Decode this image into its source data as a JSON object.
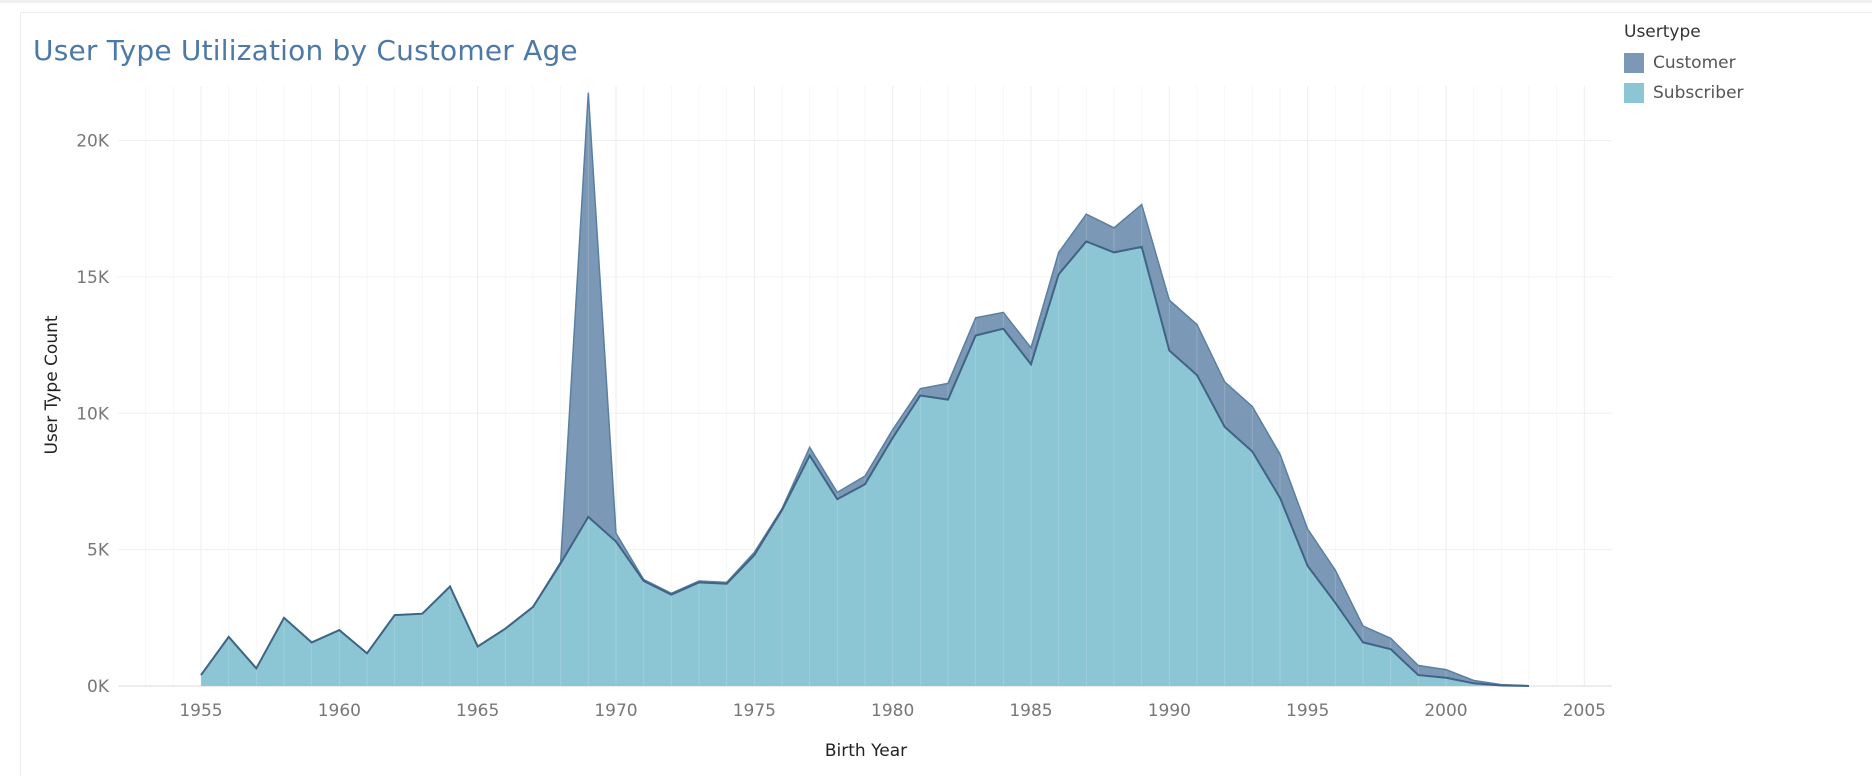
{
  "chart_data": {
    "type": "area",
    "stacked": true,
    "title": "User Type Utilization by Customer Age",
    "xlabel": "Birth Year",
    "ylabel": "User Type Count",
    "xlim": [
      1952,
      2006
    ],
    "ylim": [
      0,
      22000
    ],
    "x_ticks": [
      1955,
      1960,
      1965,
      1970,
      1975,
      1980,
      1985,
      1990,
      1995,
      2000,
      2005
    ],
    "x_tick_labels": [
      "1955",
      "1960",
      "1965",
      "1970",
      "1975",
      "1980",
      "1985",
      "1990",
      "1995",
      "2000",
      "2005"
    ],
    "y_ticks": [
      0,
      5000,
      10000,
      15000,
      20000
    ],
    "y_tick_labels": [
      "0K",
      "5K",
      "10K",
      "15K",
      "20K"
    ],
    "grid": true,
    "legend_title": "Usertype",
    "legend_position": "top-right",
    "x": [
      1955,
      1956,
      1957,
      1958,
      1959,
      1960,
      1961,
      1962,
      1963,
      1964,
      1965,
      1966,
      1967,
      1968,
      1969,
      1970,
      1971,
      1972,
      1973,
      1974,
      1975,
      1976,
      1977,
      1978,
      1979,
      1980,
      1981,
      1982,
      1983,
      1984,
      1985,
      1986,
      1987,
      1988,
      1989,
      1990,
      1991,
      1992,
      1993,
      1994,
      1995,
      1996,
      1997,
      1998,
      1999,
      2000,
      2001,
      2002,
      2003
    ],
    "series": [
      {
        "name": "Subscriber",
        "color": "#8cc5d3",
        "values": [
          400,
          1800,
          650,
          2500,
          1600,
          2050,
          1200,
          2600,
          2650,
          3650,
          1450,
          2100,
          2900,
          4500,
          6200,
          5300,
          3850,
          3350,
          3800,
          3750,
          4800,
          6450,
          8450,
          6850,
          7400,
          9100,
          10650,
          10500,
          12850,
          13100,
          11800,
          15100,
          16300,
          15900,
          16100,
          12300,
          11400,
          9500,
          8600,
          6900,
          4400,
          3050,
          1600,
          1350,
          400,
          300,
          100,
          20,
          0
        ]
      },
      {
        "name": "Customer",
        "color": "#7b99b6",
        "values": [
          0,
          0,
          0,
          0,
          0,
          0,
          0,
          0,
          0,
          0,
          0,
          0,
          0,
          50,
          15550,
          300,
          50,
          50,
          50,
          50,
          100,
          50,
          300,
          250,
          300,
          300,
          250,
          600,
          650,
          600,
          600,
          800,
          1000,
          900,
          1550,
          1850,
          1850,
          1650,
          1650,
          1600,
          1350,
          1200,
          600,
          400,
          350,
          300,
          100,
          30,
          10
        ]
      }
    ]
  }
}
